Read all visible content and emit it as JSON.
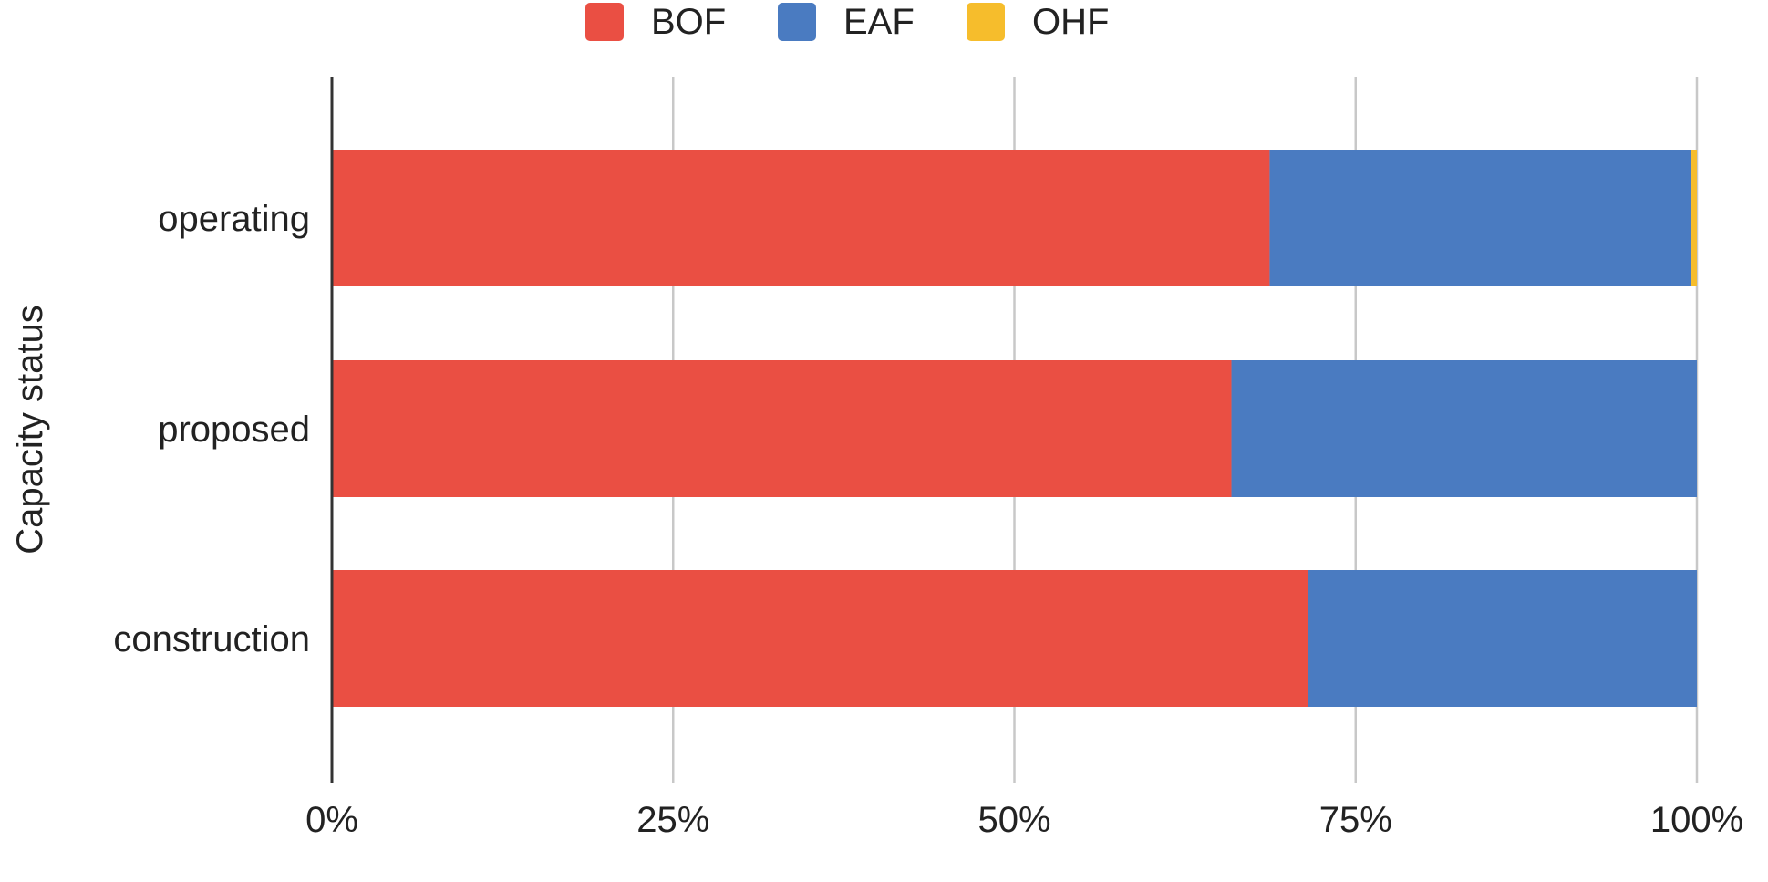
{
  "chart_data": {
    "type": "bar",
    "orientation": "horizontal",
    "stacked": "percent",
    "title": "",
    "xlabel": "",
    "ylabel": "Capacity status",
    "categories": [
      "operating",
      "proposed",
      "construction"
    ],
    "series": [
      {
        "name": "BOF",
        "color": "#ea4f43",
        "values": [
          68.7,
          65.9,
          71.5
        ]
      },
      {
        "name": "EAF",
        "color": "#4a7bc1",
        "values": [
          30.9,
          34.1,
          28.5
        ]
      },
      {
        "name": "OHF",
        "color": "#f6bd2c",
        "values": [
          0.4,
          0.0,
          0.0
        ]
      }
    ],
    "xlim": [
      0,
      100
    ],
    "x_ticks": [
      "0%",
      "25%",
      "50%",
      "75%",
      "100%"
    ],
    "grid": true,
    "legend_position": "top"
  }
}
